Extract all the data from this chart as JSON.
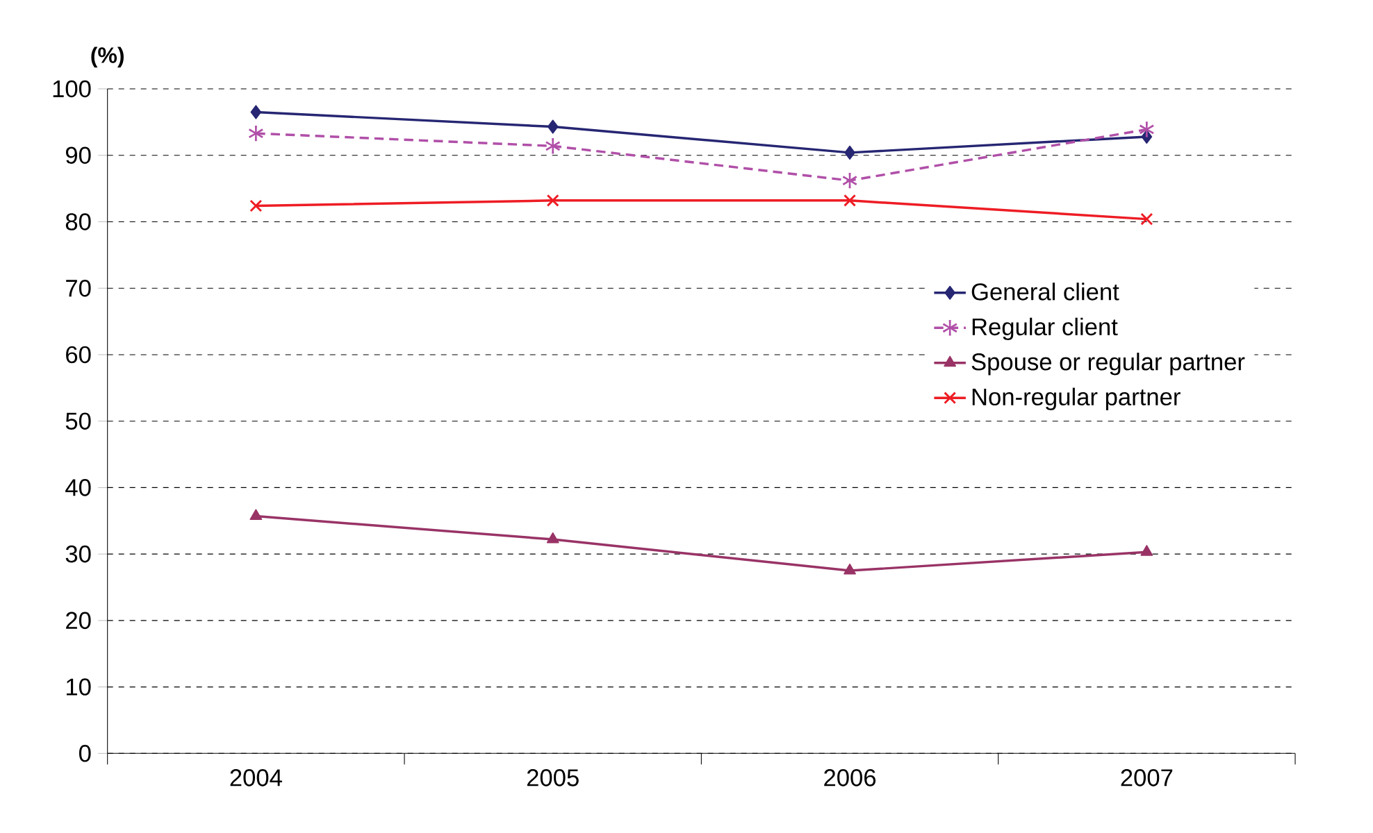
{
  "chart_data": {
    "type": "line",
    "ylabel": "(%)",
    "categories": [
      "2004",
      "2005",
      "2006",
      "2007"
    ],
    "series": [
      {
        "name": "General client",
        "color": "#262673",
        "values": [
          96.5,
          94.3,
          90.4,
          92.8
        ],
        "marker": "diamond",
        "line_style": "solid"
      },
      {
        "name": "Regular client",
        "color": "#b04fa8",
        "values": [
          93.3,
          91.4,
          86.2,
          93.9
        ],
        "marker": "star",
        "line_style": "dashed"
      },
      {
        "name": "Spouse or regular partner",
        "color": "#993366",
        "values": [
          35.7,
          32.2,
          27.5,
          30.3
        ],
        "marker": "triangle",
        "line_style": "solid"
      },
      {
        "name": "Non-regular partner",
        "color": "#ee1c24",
        "values": [
          82.4,
          83.2,
          83.2,
          80.4
        ],
        "marker": "cross",
        "line_style": "solid"
      }
    ],
    "ylim": [
      0,
      100
    ],
    "yticks": [
      0,
      10,
      20,
      30,
      40,
      50,
      60,
      70,
      80,
      90,
      100
    ],
    "grid": "y",
    "legend": "right"
  }
}
